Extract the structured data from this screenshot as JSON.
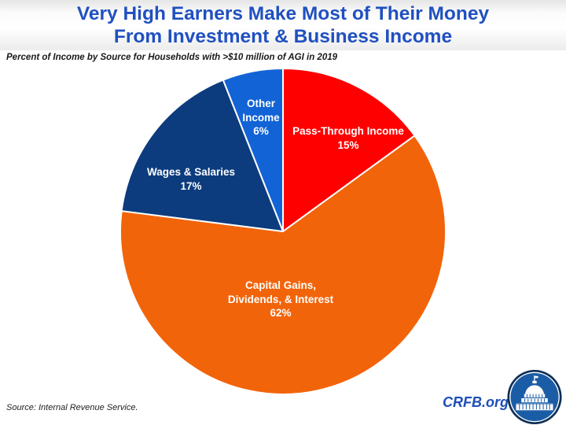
{
  "header": {
    "title_line1": "Very High Earners Make Most of Their Money",
    "title_line2": "From Investment & Business Income",
    "subtitle": "Percent of Income by Source for Households with >$10 million of AGI in 2019"
  },
  "footer": {
    "source": "Source: Internal Revenue Service.",
    "brand": "CRFB.org"
  },
  "colors": {
    "title_blue": "#2050c0",
    "brand_blue": "#1e4fb6",
    "slice_red": "#fe0000",
    "slice_orange": "#f2640a",
    "slice_navy": "#0c3c7d",
    "slice_blue": "#1263d6",
    "slice_border": "#ffffff",
    "logo_ring_navy": "#0e2f55",
    "logo_disc_blue": "#1b5ca6"
  },
  "chart_data": {
    "type": "pie",
    "title": "Very High Earners Make Most of Their Money From Investment & Business Income",
    "subtitle": "Percent of Income by Source for Households with >$10 million of AGI in 2019",
    "unit": "percent of income",
    "total": 100,
    "start_angle_deg": 0,
    "direction": "clockwise",
    "legend_position": "none (labels inside slices)",
    "slices": [
      {
        "label": "Pass-Through Income",
        "value": 15,
        "color": "#fe0000",
        "label_lines": [
          "Pass-Through Income",
          "15%"
        ]
      },
      {
        "label": "Capital Gains, Dividends, & Interest",
        "value": 62,
        "color": "#f2640a",
        "label_lines": [
          "Capital Gains,",
          "Dividends, & Interest",
          "62%"
        ]
      },
      {
        "label": "Wages & Salaries",
        "value": 17,
        "color": "#0c3c7d",
        "label_lines": [
          "Wages & Salaries",
          "17%"
        ]
      },
      {
        "label": "Other Income",
        "value": 6,
        "color": "#1263d6",
        "label_lines": [
          "Other",
          "Income",
          "6%"
        ]
      }
    ]
  }
}
